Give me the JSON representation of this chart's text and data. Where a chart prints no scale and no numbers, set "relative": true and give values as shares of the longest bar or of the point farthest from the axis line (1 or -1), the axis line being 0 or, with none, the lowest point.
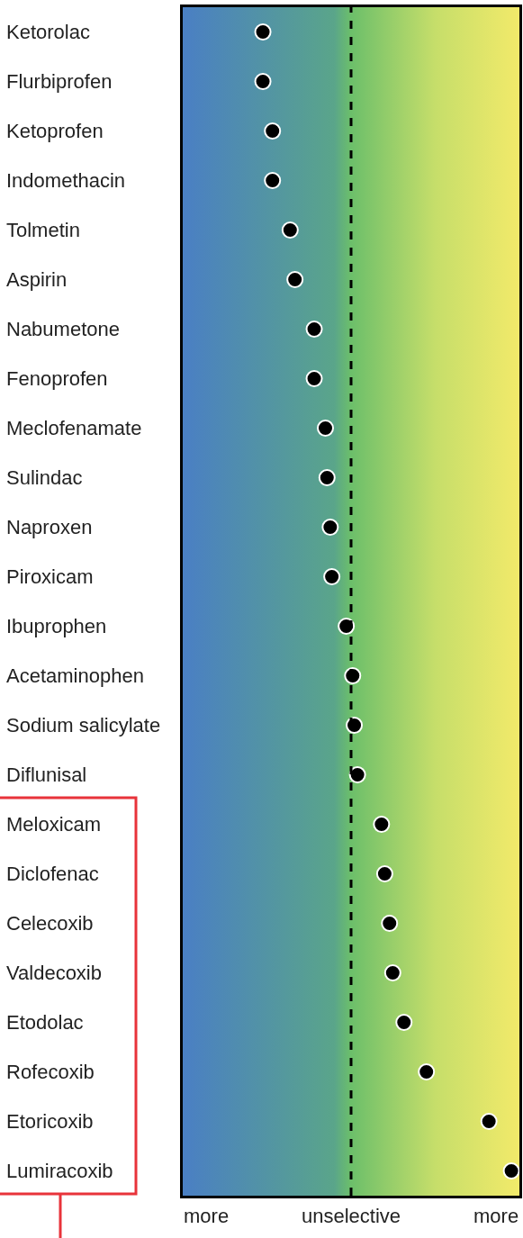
{
  "chart_data": {
    "type": "scatter",
    "orientation": "horizontal",
    "relative": true,
    "categories": [
      "Ketorolac",
      "Flurbiprofen",
      "Ketoprofen",
      "Indomethacin",
      "Tolmetin",
      "Aspirin",
      "Nabumetone",
      "Fenoprofen",
      "Meclofenamate",
      "Sulindac",
      "Naproxen",
      "Piroxicam",
      "Ibuprophen",
      "Acetaminophen",
      "Sodium salicylate",
      "Diflunisal",
      "Meloxicam",
      "Diclofenac",
      "Celecoxib",
      "Valdecoxib",
      "Etodolac",
      "Rofecoxib",
      "Etoricoxib",
      "Lumiracoxib"
    ],
    "values": [
      -0.55,
      -0.55,
      -0.49,
      -0.49,
      -0.38,
      -0.35,
      -0.23,
      -0.23,
      -0.16,
      -0.15,
      -0.13,
      -0.12,
      -0.03,
      0.01,
      0.02,
      0.04,
      0.19,
      0.21,
      0.24,
      0.26,
      0.33,
      0.47,
      0.86,
      1
    ],
    "color": "#000000",
    "annotations": [
      "more",
      "unselective",
      "more"
    ],
    "ref_lines": [
      {
        "axis": "x",
        "value": 0,
        "color": "#000000",
        "line_style": "dashed"
      }
    ],
    "marker": "circle",
    "grid": false
  }
}
